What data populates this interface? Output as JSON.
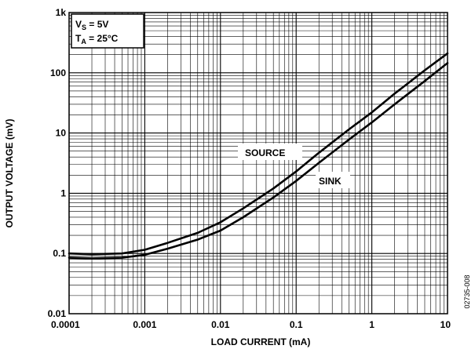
{
  "chart_data": {
    "type": "line",
    "xlabel": "LOAD CURRENT (mA)",
    "ylabel": "OUTPUT VOLTAGE (mV)",
    "x_scale": "log",
    "y_scale": "log",
    "xlim": [
      0.0001,
      10
    ],
    "ylim": [
      0.01,
      1000
    ],
    "x_ticks": [
      "0.0001",
      "0.001",
      "0.01",
      "0.1",
      "1",
      "10"
    ],
    "y_ticks": [
      "0.01",
      "0.1",
      "1",
      "10",
      "100",
      "1k"
    ],
    "grid": true,
    "conditions": {
      "vs_sym": "V",
      "vs_sub": "S",
      "vs_rest": " = 5V",
      "ta_sym": "T",
      "ta_sub": "A",
      "ta_rest": " = 25°C"
    },
    "series": [
      {
        "name": "SOURCE",
        "x": [
          0.0001,
          0.0002,
          0.0005,
          0.001,
          0.002,
          0.005,
          0.01,
          0.02,
          0.05,
          0.1,
          0.2,
          0.5,
          1,
          2,
          5,
          10
        ],
        "y": [
          0.1,
          0.097,
          0.1,
          0.115,
          0.15,
          0.22,
          0.33,
          0.56,
          1.2,
          2.3,
          4.7,
          11.5,
          22,
          45,
          110,
          210
        ]
      },
      {
        "name": "SINK",
        "x": [
          0.0001,
          0.0002,
          0.0005,
          0.001,
          0.002,
          0.005,
          0.01,
          0.02,
          0.05,
          0.1,
          0.2,
          0.5,
          1,
          2,
          5,
          10
        ],
        "y": [
          0.085,
          0.083,
          0.085,
          0.095,
          0.12,
          0.17,
          0.24,
          0.4,
          0.85,
          1.6,
          3.2,
          7.8,
          15,
          30,
          73,
          145
        ]
      }
    ],
    "annotations": [
      "SOURCE",
      "SINK"
    ],
    "figure_id": "02735-008"
  }
}
